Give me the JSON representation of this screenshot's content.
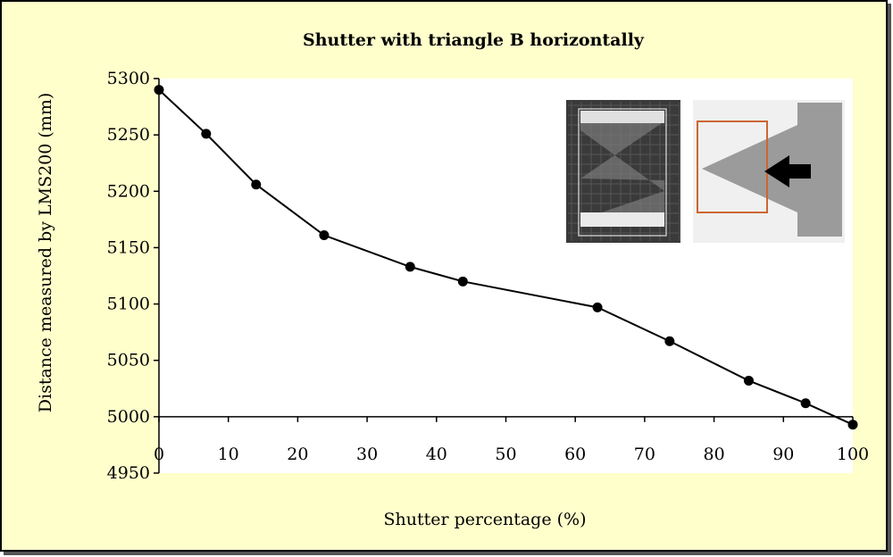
{
  "chart_data": {
    "type": "line",
    "title": "Shutter with triangle B horizontally",
    "xlabel": "Shutter percentage  (%)",
    "ylabel": "Distance measured by LMS200 (mm)",
    "xlim": [
      0,
      100
    ],
    "ylim": [
      4950,
      5300
    ],
    "xticks": [
      0,
      10,
      20,
      30,
      40,
      50,
      60,
      70,
      80,
      90,
      100
    ],
    "yticks": [
      4950,
      5000,
      5050,
      5100,
      5150,
      5200,
      5250,
      5300
    ],
    "grid": false,
    "legend": "none",
    "series": [
      {
        "color": "#000000",
        "marker": "circle",
        "x": [
          0,
          6.8,
          14,
          23.8,
          36.2,
          43.8,
          63.2,
          73.6,
          85,
          93.2,
          100
        ],
        "y": [
          5290,
          5251,
          5206,
          5161,
          5133,
          5120,
          5097,
          5067,
          5032,
          5012,
          4993
        ]
      }
    ],
    "colors": {
      "background": "#ffffcc",
      "plot_area": "#ffffff",
      "line": "#000000",
      "inset_box": "#cc6633",
      "triangle": "#999999"
    }
  }
}
